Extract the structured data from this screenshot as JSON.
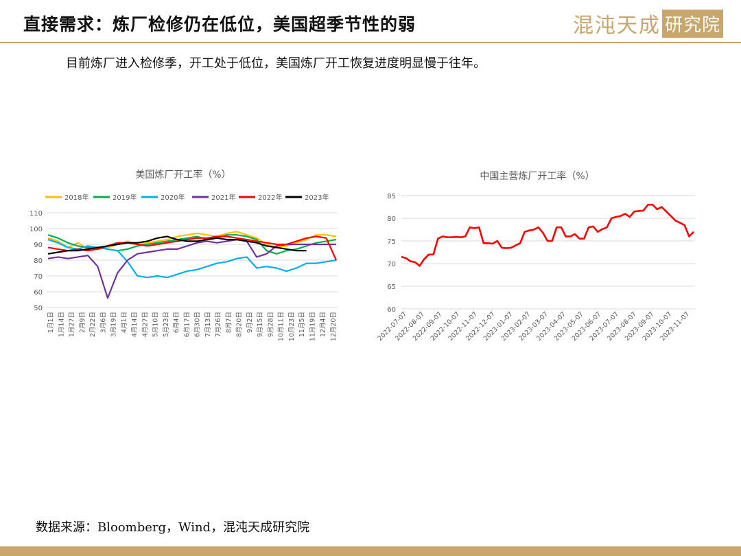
{
  "header": {
    "title": "直接需求：炼厂检修仍在低位，美国超季节性的弱",
    "brand_script": "混沌天成",
    "brand_box": "研究院"
  },
  "subtitle": "目前炼厂进入检修季，开工处于低位，美国炼厂开工恢复进度明显慢于往年。",
  "source": "数据来源：Bloomberg，Wind，混沌天成研究院",
  "colors": {
    "accent": "#c9a66b",
    "s2018": "#ffc000",
    "s2019": "#00b050",
    "s2020": "#00b0f0",
    "s2021": "#7030a0",
    "s2022": "#ff0000",
    "s2023": "#000000",
    "china": "#ff0000"
  },
  "chart_data": [
    {
      "type": "line",
      "title": "美国炼厂开工率（%）",
      "ylim": [
        50,
        110
      ],
      "yticks": [
        50,
        60,
        70,
        80,
        90,
        100,
        110
      ],
      "x_labels": [
        "1月1日",
        "1月14日",
        "1月27日",
        "2月9日",
        "2月22日",
        "3月6日",
        "3月19日",
        "4月1日",
        "4月14日",
        "4月27日",
        "5月10日",
        "5月23日",
        "6月4日",
        "6月17日",
        "6月30日",
        "7月13日",
        "7月26日",
        "8月7日",
        "8月20日",
        "9月2日",
        "9月15日",
        "9月28日",
        "10月11日",
        "10月23日",
        "11月5日",
        "11月19日",
        "12月4日",
        "12月20日"
      ],
      "legend_position": "top",
      "grid": true,
      "series": [
        {
          "name": "2018年",
          "values": [
            94,
            92,
            88,
            91,
            87,
            87,
            88,
            90,
            92,
            90,
            91,
            92,
            93,
            95,
            96,
            97,
            96,
            95,
            97,
            98,
            96,
            94,
            90,
            88,
            89,
            91,
            93,
            96,
            96,
            95
          ]
        },
        {
          "name": "2019年",
          "values": [
            96,
            94,
            91,
            89,
            88,
            88,
            87,
            86,
            87,
            89,
            90,
            91,
            92,
            93,
            94,
            95,
            93,
            94,
            96,
            96,
            95,
            93,
            86,
            84,
            86,
            87,
            89,
            91,
            92,
            93
          ]
        },
        {
          "name": "2020年",
          "values": [
            93,
            91,
            88,
            87,
            89,
            88,
            87,
            86,
            79,
            70,
            69,
            70,
            69,
            71,
            73,
            74,
            76,
            78,
            79,
            81,
            82,
            75,
            76,
            75,
            73,
            75,
            78,
            78,
            79,
            80
          ]
        },
        {
          "name": "2021年",
          "values": [
            81,
            82,
            81,
            82,
            83,
            76,
            56,
            72,
            80,
            84,
            85,
            86,
            87,
            87,
            89,
            91,
            92,
            91,
            92,
            93,
            92,
            82,
            84,
            89,
            90,
            90,
            90,
            90,
            90,
            90
          ]
        },
        {
          "name": "2022年",
          "values": [
            88,
            87,
            86,
            87,
            86,
            87,
            89,
            91,
            91,
            90,
            89,
            90,
            91,
            92,
            93,
            94,
            94,
            95,
            95,
            94,
            93,
            92,
            91,
            90,
            90,
            92,
            94,
            95,
            94,
            80
          ]
        },
        {
          "name": "2023年",
          "values": [
            84,
            85,
            86,
            86,
            87,
            88,
            89,
            90,
            91,
            91,
            92,
            94,
            95,
            93,
            92,
            92,
            93,
            94,
            93,
            93,
            92,
            91,
            89,
            88,
            87,
            86,
            86
          ]
        }
      ]
    },
    {
      "type": "line",
      "title": "中国主营炼厂开工率（%）",
      "ylim": [
        60,
        85
      ],
      "yticks": [
        60,
        65,
        70,
        75,
        80,
        85
      ],
      "x_labels": [
        "2022-07-07",
        "2022-08-07",
        "2022-09-07",
        "2022-10-07",
        "2022-11-07",
        "2022-12-07",
        "2023-01-07",
        "2023-02-07",
        "2023-03-07",
        "2023-04-07",
        "2023-05-07",
        "2023-06-07",
        "2023-07-07",
        "2023-08-07",
        "2023-09-07",
        "2023-10-07",
        "2023-11-07"
      ],
      "grid": true,
      "series": [
        {
          "name": "",
          "values": [
            71.5,
            71.2,
            70.5,
            70.3,
            69.5,
            71,
            72,
            72,
            75.5,
            76,
            75.8,
            75.8,
            75.9,
            75.8,
            76,
            78,
            77.8,
            78,
            74.5,
            74.5,
            74.4,
            75,
            73.5,
            73.4,
            73.5,
            74,
            74.5,
            77,
            77.3,
            77.5,
            78,
            76.8,
            75,
            75,
            78,
            78,
            76,
            76,
            76.5,
            75.5,
            75.5,
            78,
            78.2,
            77,
            77.6,
            78,
            80,
            80.3,
            80.5,
            81,
            80.3,
            81.5,
            81.6,
            81.7,
            83,
            83,
            82,
            82.5,
            81.5,
            80.5,
            79.5,
            79,
            78.5,
            76,
            77
          ]
        }
      ]
    }
  ]
}
